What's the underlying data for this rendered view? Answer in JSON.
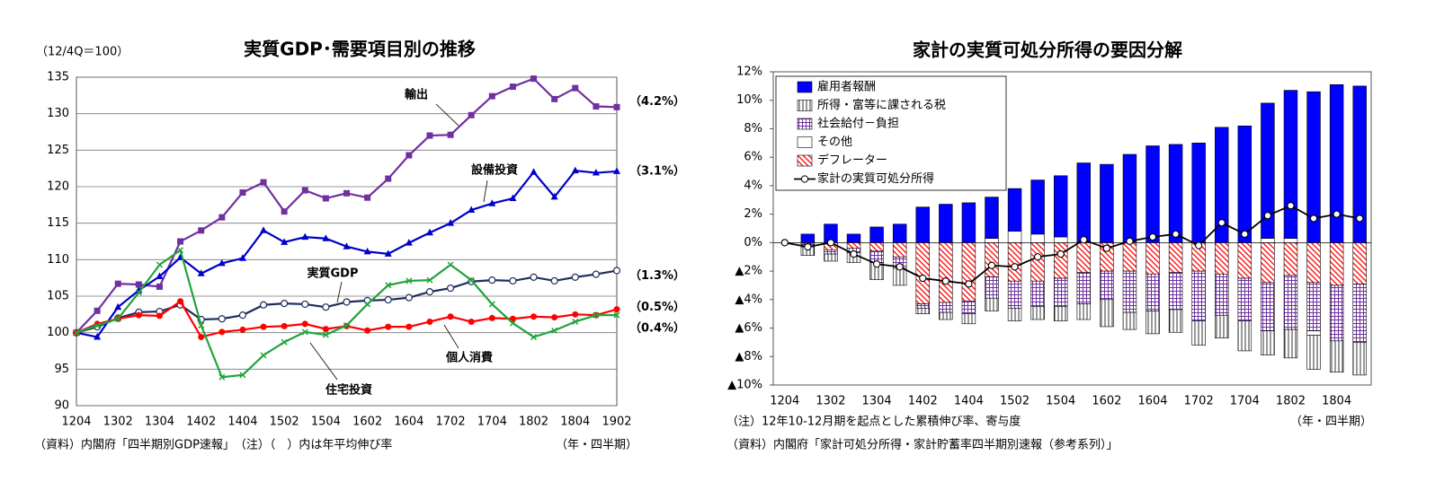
{
  "chart_data": [
    {
      "type": "line",
      "title": "実質GDP･需要項目別の推移",
      "y_unit": "（12/4Q＝100）",
      "x_unit": "（年・四半期）",
      "source": "（資料）内閣府「四半期別GDP速報」　（注）（　）内は年平均伸び率",
      "categories": [
        "1204",
        null,
        "1302",
        null,
        "1304",
        null,
        "1402",
        null,
        "1404",
        null,
        "1502",
        null,
        "1504",
        null,
        "1602",
        null,
        "1604",
        null,
        "1702",
        null,
        "1704",
        null,
        "1802",
        null,
        "1804",
        null,
        "1902"
      ],
      "ylim": [
        90,
        135
      ],
      "yticks": [
        90,
        95,
        100,
        105,
        110,
        115,
        120,
        125,
        130,
        135
      ],
      "grid": true,
      "series": [
        {
          "name": "輸出",
          "color": "#7030a0",
          "marker": "square",
          "end_label": "（4.2%）",
          "values": [
            100,
            103,
            106.7,
            106.6,
            106.3,
            112.5,
            114,
            115.8,
            119.2,
            120.6,
            116.6,
            119.5,
            118.4,
            119.1,
            118.5,
            121.1,
            124.3,
            127,
            127.1,
            129.8,
            132.4,
            133.7,
            134.8,
            132,
            133.5,
            131,
            130.9
          ]
        },
        {
          "name": "設備投資",
          "color": "#0000cc",
          "marker": "triangle",
          "end_label": "（3.1%）",
          "values": [
            100,
            99.4,
            103.5,
            105.8,
            107.7,
            110.3,
            108.1,
            109.5,
            110.2,
            114,
            112.4,
            113.1,
            112.9,
            111.8,
            111.1,
            110.8,
            112.3,
            113.7,
            115,
            116.8,
            117.7,
            118.4,
            122,
            118.6,
            122.2,
            121.9,
            122.1
          ]
        },
        {
          "name": "実質GDP",
          "color": "#1f2d5c",
          "marker": "open-circle",
          "end_label": "（1.3%）",
          "values": [
            100,
            100.8,
            102,
            102.8,
            102.9,
            103.8,
            101.8,
            101.9,
            102.4,
            103.8,
            104,
            103.9,
            103.5,
            104.2,
            104.4,
            104.5,
            104.8,
            105.6,
            106.1,
            107,
            107.2,
            107.1,
            107.6,
            107.1,
            107.6,
            108,
            108.5
          ]
        },
        {
          "name": "個人消費",
          "color": "#ff0000",
          "marker": "circle",
          "end_label": "（0.5%）",
          "values": [
            100,
            101.2,
            101.9,
            102.4,
            102.3,
            104.3,
            99.4,
            100.1,
            100.4,
            100.8,
            100.9,
            101.2,
            100.5,
            100.9,
            100.3,
            100.8,
            100.8,
            101.5,
            102.2,
            101.5,
            102,
            101.9,
            102.2,
            102.1,
            102.5,
            102.4,
            103.2
          ]
        },
        {
          "name": "住宅投資",
          "color": "#22a33a",
          "marker": "x",
          "end_label": "（0.4%）",
          "values": [
            100,
            101,
            101.9,
            105.5,
            109.3,
            111.3,
            101,
            93.9,
            94.2,
            96.9,
            98.7,
            100.1,
            99.7,
            101,
            103.9,
            106.5,
            107.1,
            107.2,
            109.3,
            107.2,
            103.9,
            101.3,
            99.4,
            100.3,
            101.5,
            102.4,
            102.4
          ]
        }
      ]
    },
    {
      "type": "stacked-bar-line",
      "title": "家計の実質可処分所得の要因分解",
      "note": "（注）12年10-12月期を起点とした累積伸び率、寄与度",
      "x_unit": "（年・四半期）",
      "source": "（資料）内閣府「家計可処分所得・家計貯蓄率四半期別速報（参考系列）」",
      "categories": [
        "1204",
        null,
        "1302",
        null,
        "1304",
        null,
        "1402",
        null,
        "1404",
        null,
        "1502",
        null,
        "1504",
        null,
        "1602",
        null,
        "1604",
        null,
        "1702",
        null,
        "1704",
        null,
        "1802",
        null,
        "1804",
        null
      ],
      "ylim": [
        -10,
        12
      ],
      "yticks": [
        {
          "value": -10,
          "label": "▲10%"
        },
        {
          "value": -8,
          "label": "▲8%"
        },
        {
          "value": -6,
          "label": "▲6%"
        },
        {
          "value": -4,
          "label": "▲4%"
        },
        {
          "value": -2,
          "label": "▲2%"
        },
        {
          "value": 0,
          "label": "0%"
        },
        {
          "value": 2,
          "label": "2%"
        },
        {
          "value": 4,
          "label": "4%"
        },
        {
          "value": 6,
          "label": "6%"
        },
        {
          "value": 8,
          "label": "8%"
        },
        {
          "value": 10,
          "label": "10%"
        },
        {
          "value": 12,
          "label": "12%"
        }
      ],
      "legend": "top-left",
      "series": [
        {
          "name": "雇用者報酬",
          "color": "#0000ff",
          "pattern": "solid",
          "values": [
            null,
            0.6,
            1.3,
            0.6,
            1.1,
            1.3,
            2.5,
            2.7,
            2.8,
            2.9,
            3.0,
            3.8,
            4.3,
            5.6,
            5.5,
            6.2,
            6.8,
            6.9,
            7.0,
            8.1,
            8.2,
            9.5,
            10.4,
            10.6,
            11.1,
            11.0
          ]
        },
        {
          "name": "所得・富等に課される税",
          "color": "#000000",
          "pattern": "vertical-lines",
          "values": [
            null,
            -0.6,
            -0.5,
            -0.7,
            -1.2,
            -1.2,
            -0.4,
            -0.5,
            -0.7,
            -0.9,
            -0.9,
            -0.9,
            -1.0,
            -1.1,
            -1.9,
            -1.2,
            -1.6,
            -1.6,
            -1.7,
            -1.6,
            -2.1,
            -1.7,
            -2.0,
            -2.4,
            -2.2,
            -2.3
          ]
        },
        {
          "name": "社会給付－負担",
          "color": "#7030a0",
          "pattern": "grid",
          "values": [
            null,
            -0.2,
            -0.3,
            -0.3,
            -0.8,
            -0.8,
            -0.3,
            -0.7,
            -0.9,
            -1.5,
            -1.9,
            -1.8,
            -2.0,
            -2.2,
            -2.0,
            -2.9,
            -2.6,
            -2.6,
            -3.5,
            -2.9,
            -3.0,
            -3.4,
            -3.8,
            -3.4,
            -3.9,
            -4.1
          ]
        },
        {
          "name": "その他",
          "color": "#ffffff",
          "pattern": "solid",
          "values": [
            null,
            0,
            0,
            0,
            0,
            0,
            0,
            0,
            0,
            0.3,
            0.8,
            0.6,
            0.4,
            0,
            0,
            0,
            0,
            0,
            0,
            0,
            0,
            0.3,
            0.3,
            -0.3,
            0,
            0
          ]
        },
        {
          "name": "デフレーター",
          "color": "#ff0000",
          "pattern": "diagonal",
          "values": [
            null,
            -0.1,
            -0.5,
            -0.4,
            -0.6,
            -1.0,
            -4.3,
            -4.2,
            -4.1,
            -2.4,
            -2.7,
            -2.7,
            -2.5,
            -2.1,
            -2.0,
            -2.0,
            -2.2,
            -2.1,
            -2.0,
            -2.2,
            -2.5,
            -2.8,
            -2.3,
            -2.8,
            -3.0,
            -2.9
          ]
        },
        {
          "name": "家計の実質可処分所得",
          "color": "#000000",
          "type": "line",
          "values": [
            0,
            -0.3,
            0,
            -0.8,
            -1.5,
            -1.7,
            -2.5,
            -2.7,
            -2.9,
            -1.6,
            -1.7,
            -1.0,
            -0.8,
            0.2,
            -0.4,
            0.1,
            0.4,
            0.6,
            -0.2,
            1.4,
            0.6,
            1.9,
            2.6,
            1.7,
            2.0,
            1.7
          ]
        }
      ]
    }
  ]
}
